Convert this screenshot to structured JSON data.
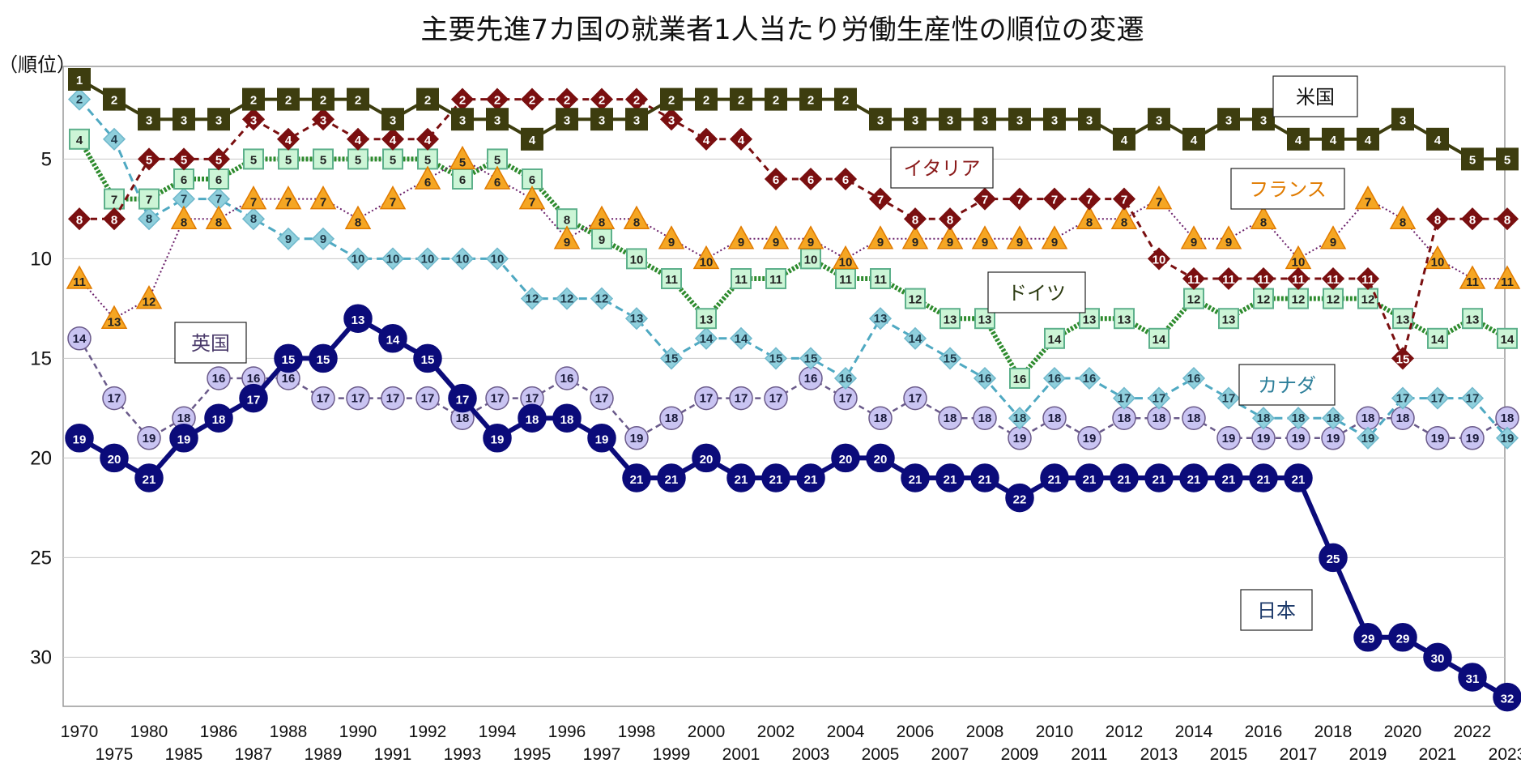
{
  "chart_data": {
    "type": "line",
    "title": "主要先進7カ国の就業者1人当たり労働生産性の順位の変遷",
    "ylabel": "（順位）",
    "ylim": [
      1,
      32
    ],
    "yticks": [
      5,
      10,
      15,
      20,
      25,
      30
    ],
    "y_inverted": true,
    "grid": true,
    "x": [
      "1970",
      "1975",
      "1980",
      "1985",
      "1986",
      "1987",
      "1988",
      "1989",
      "1990",
      "1991",
      "1992",
      "1993",
      "1994",
      "1995",
      "1996",
      "1997",
      "1998",
      "1999",
      "2000",
      "2001",
      "2002",
      "2003",
      "2004",
      "2005",
      "2006",
      "2007",
      "2008",
      "2009",
      "2010",
      "2011",
      "2012",
      "2013",
      "2014",
      "2015",
      "2016",
      "2017",
      "2018",
      "2019",
      "2020",
      "2021",
      "2022",
      "2023"
    ],
    "series": [
      {
        "name": "米国",
        "color": "#3d3d0f",
        "marker": "square",
        "values": [
          1,
          2,
          3,
          3,
          3,
          2,
          2,
          2,
          2,
          3,
          2,
          3,
          3,
          4,
          3,
          3,
          3,
          2,
          2,
          2,
          2,
          2,
          2,
          3,
          3,
          3,
          3,
          3,
          3,
          3,
          4,
          3,
          4,
          3,
          3,
          4,
          4,
          4,
          3,
          4,
          5,
          5
        ]
      },
      {
        "name": "イタリア",
        "color": "#7a0f10",
        "marker": "diamond",
        "values": [
          8,
          8,
          5,
          5,
          5,
          3,
          4,
          3,
          4,
          4,
          4,
          2,
          2,
          2,
          2,
          2,
          2,
          3,
          4,
          4,
          6,
          6,
          6,
          7,
          8,
          8,
          7,
          7,
          7,
          7,
          7,
          10,
          11,
          11,
          11,
          11,
          11,
          11,
          15,
          8,
          8,
          8
        ]
      },
      {
        "name": "フランス",
        "color": "#f5a623",
        "marker": "triangle",
        "values": [
          11,
          13,
          12,
          8,
          8,
          7,
          7,
          7,
          8,
          7,
          6,
          5,
          6,
          7,
          9,
          8,
          8,
          9,
          10,
          9,
          9,
          9,
          10,
          9,
          9,
          9,
          9,
          9,
          9,
          8,
          8,
          7,
          9,
          9,
          8,
          10,
          9,
          7,
          8,
          10,
          11,
          11
        ]
      },
      {
        "name": "ドイツ",
        "color": "#2e8b2e",
        "marker": "square",
        "values": [
          4,
          7,
          7,
          6,
          6,
          5,
          5,
          5,
          5,
          5,
          5,
          6,
          5,
          6,
          8,
          9,
          10,
          11,
          13,
          11,
          11,
          10,
          11,
          11,
          12,
          13,
          13,
          16,
          14,
          13,
          13,
          14,
          12,
          13,
          12,
          12,
          12,
          12,
          13,
          14,
          13,
          14
        ]
      },
      {
        "name": "カナダ",
        "color": "#4fa9c2",
        "marker": "diamond",
        "values": [
          2,
          4,
          8,
          7,
          7,
          8,
          9,
          9,
          10,
          10,
          10,
          10,
          10,
          12,
          12,
          12,
          13,
          15,
          14,
          14,
          15,
          15,
          16,
          13,
          14,
          15,
          16,
          18,
          16,
          16,
          17,
          17,
          16,
          17,
          18,
          18,
          18,
          19,
          17,
          17,
          17,
          19
        ]
      },
      {
        "name": "英国",
        "color": "#6a5a8a",
        "marker": "circle",
        "values": [
          14,
          17,
          19,
          18,
          16,
          16,
          16,
          17,
          17,
          17,
          17,
          18,
          17,
          17,
          16,
          17,
          19,
          18,
          17,
          17,
          17,
          16,
          17,
          18,
          17,
          18,
          18,
          19,
          18,
          19,
          18,
          18,
          18,
          19,
          19,
          19,
          19,
          18,
          18,
          19,
          19,
          18
        ]
      },
      {
        "name": "日本",
        "color": "#0b0b7a",
        "marker": "circle",
        "values": [
          19,
          20,
          21,
          19,
          18,
          17,
          15,
          15,
          13,
          14,
          15,
          17,
          19,
          18,
          18,
          19,
          21,
          21,
          20,
          21,
          21,
          21,
          20,
          20,
          21,
          21,
          21,
          22,
          21,
          21,
          21,
          21,
          21,
          21,
          21,
          21,
          25,
          29,
          29,
          30,
          31,
          32
        ]
      }
    ]
  }
}
